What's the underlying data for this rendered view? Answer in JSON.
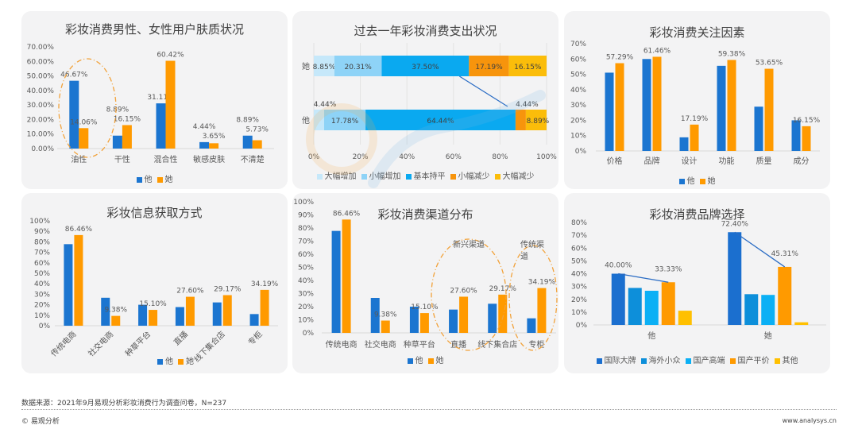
{
  "colors": {
    "him": "#1b75d0",
    "her": "#ff9a00"
  },
  "watermark": {
    "text": "易观分析",
    "latin": "analysys"
  },
  "footer": {
    "source": "数据来源：2021年9月易观分析彩妆消费行为调查问卷，N=237",
    "copyright": "© 易观分析",
    "url": "www.analysys.cn"
  },
  "chart_data": [
    {
      "id": "skin",
      "type": "bar",
      "title": "彩妆消费男性、女性用户肤质状况",
      "categories": [
        "油性",
        "干性",
        "混合性",
        "敏感皮肤",
        "不清楚"
      ],
      "ylim": [
        0,
        70
      ],
      "yticks": [
        "0.00%",
        "10.00%",
        "20.00%",
        "30.00%",
        "40.00%",
        "50.00%",
        "60.00%",
        "70.00%"
      ],
      "series": [
        {
          "name": "他",
          "color": "#1b75d0",
          "values": [
            46.67,
            8.89,
            31.11,
            4.44,
            8.89
          ],
          "labels": true
        },
        {
          "name": "她",
          "color": "#ff9a00",
          "values": [
            14.06,
            16.15,
            60.42,
            3.65,
            5.73
          ],
          "labels": true
        }
      ],
      "legend": "bottom",
      "highlight": [
        "油性"
      ]
    },
    {
      "id": "spend",
      "type": "bar",
      "orientation": "horizontal-stacked",
      "title": "过去一年彩妆消费支出状况",
      "categories": [
        "她",
        "他"
      ],
      "xlim": [
        0,
        100
      ],
      "xticks": [
        "0%",
        "20%",
        "40%",
        "60%",
        "80%",
        "100%"
      ],
      "series": [
        {
          "name": "大幅增加",
          "color": "#c6e8fa",
          "values": [
            8.85,
            4.44
          ]
        },
        {
          "name": "小幅增加",
          "color": "#8ed3f7",
          "values": [
            20.31,
            17.78
          ]
        },
        {
          "name": "基本持平",
          "color": "#0aa9f0",
          "values": [
            37.5,
            64.44
          ]
        },
        {
          "name": "小幅减少",
          "color": "#f7940c",
          "values": [
            17.19,
            4.44
          ]
        },
        {
          "name": "大幅减少",
          "color": "#fbbd0a",
          "values": [
            16.15,
            8.89
          ]
        }
      ],
      "grid": true,
      "legend": "bottom"
    },
    {
      "id": "factors",
      "type": "bar",
      "title": "彩妆消费关注因素",
      "categories": [
        "价格",
        "品牌",
        "设计",
        "功能",
        "质量",
        "成分"
      ],
      "ylim": [
        0,
        70
      ],
      "yticks": [
        "0%",
        "10%",
        "20%",
        "30%",
        "40%",
        "50%",
        "60%",
        "70%"
      ],
      "series": [
        {
          "name": "他",
          "color": "#1b75d0",
          "values": [
            51.1,
            60.0,
            8.89,
            55.56,
            28.89,
            20.0
          ],
          "labels": false
        },
        {
          "name": "她",
          "color": "#ff9a00",
          "values": [
            57.29,
            61.46,
            17.19,
            59.38,
            53.65,
            16.15
          ],
          "labels": true
        }
      ],
      "legend": "bottom"
    },
    {
      "id": "info",
      "type": "bar",
      "title": "彩妆信息获取方式",
      "categories": [
        "传统电商",
        "社交电商",
        "种草平台",
        "直播",
        "线下集合店",
        "专柜"
      ],
      "ylim": [
        0,
        100
      ],
      "yticks": [
        "0%",
        "10%",
        "20%",
        "30%",
        "40%",
        "50%",
        "60%",
        "70%",
        "80%",
        "90%",
        "100%"
      ],
      "series": [
        {
          "name": "他",
          "color": "#1b75d0",
          "values": [
            77.78,
            26.67,
            20.0,
            17.78,
            22.22,
            11.11
          ],
          "labels": false
        },
        {
          "name": "她",
          "color": "#ff9a00",
          "values": [
            86.46,
            9.38,
            15.1,
            27.6,
            29.17,
            34.19
          ],
          "labels": true
        }
      ],
      "legend": "bottom",
      "rotated_labels": true
    },
    {
      "id": "channel",
      "type": "bar",
      "title": "彩妆消费渠道分布",
      "categories": [
        "传统电商",
        "社交电商",
        "种草平台",
        "直播",
        "线下集合店",
        "专柜"
      ],
      "ylim": [
        0,
        100
      ],
      "yticks": [
        "0%",
        "10%",
        "20%",
        "30%",
        "40%",
        "50%",
        "60%",
        "70%",
        "80%",
        "90%",
        "100%"
      ],
      "series": [
        {
          "name": "他",
          "color": "#1b75d0",
          "values": [
            77.78,
            26.67,
            20.0,
            17.78,
            22.22,
            11.11
          ],
          "labels": false
        },
        {
          "name": "她",
          "color": "#ff9a00",
          "values": [
            86.46,
            9.38,
            15.1,
            27.6,
            29.17,
            34.19
          ],
          "labels": true
        }
      ],
      "annotations": [
        "新兴渠道",
        "传统渠道"
      ],
      "legend": "bottom"
    },
    {
      "id": "brand",
      "type": "bar",
      "title": "彩妆消费品牌选择",
      "categories": [
        "他",
        "她"
      ],
      "ylim": [
        0,
        80
      ],
      "yticks": [
        "0%",
        "10%",
        "20%",
        "30%",
        "40%",
        "50%",
        "60%",
        "70%",
        "80%"
      ],
      "series": [
        {
          "name": "国际大牌",
          "color": "#1b6fcf",
          "values": [
            40.0,
            72.4
          ],
          "labels": true
        },
        {
          "name": "海外小众",
          "color": "#0d8fda",
          "values": [
            28.89,
            24.0
          ],
          "labels": false
        },
        {
          "name": "国产高端",
          "color": "#0bb0f5",
          "values": [
            26.67,
            23.44
          ],
          "labels": false
        },
        {
          "name": "国产平价",
          "color": "#ff9a00",
          "values": [
            33.33,
            45.31
          ],
          "labels": true
        },
        {
          "name": "其他",
          "color": "#ffc000",
          "values": [
            11.11,
            2.08
          ],
          "labels": false
        }
      ],
      "legend": "bottom"
    }
  ]
}
